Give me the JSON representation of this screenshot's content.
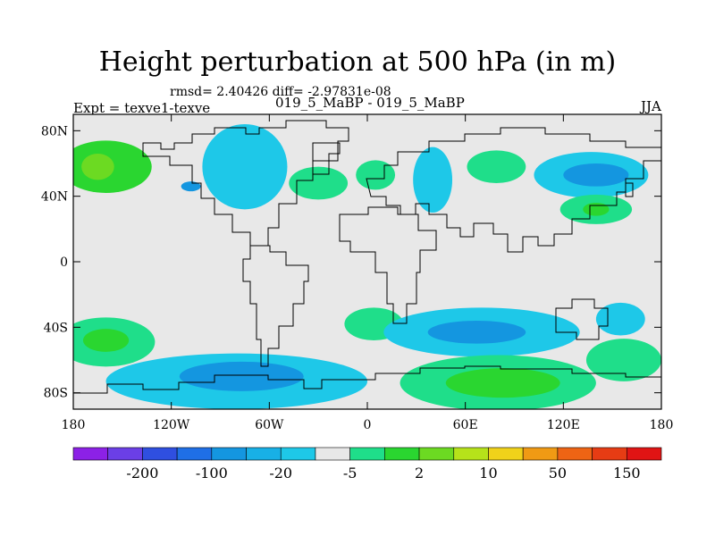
{
  "header": {
    "title": "Height perturbation at 500 hPa (in m)",
    "stats": "rmsd= 2.40426 diff= -2.97831e-08",
    "expt": "Expt = texve1-texve",
    "case_pair": "019_5_MaBP - 019_5_MaBP",
    "season": "JJA"
  },
  "chart_data": {
    "type": "heatmap",
    "title": "Height perturbation at 500 hPa (in m)",
    "xlabel": "",
    "ylabel": "",
    "xlim": [
      -180,
      180
    ],
    "ylim": [
      -90,
      90
    ],
    "x_ticks": [
      {
        "value": -180,
        "label": "180"
      },
      {
        "value": -120,
        "label": "120W"
      },
      {
        "value": -60,
        "label": "60W"
      },
      {
        "value": 0,
        "label": "0"
      },
      {
        "value": 60,
        "label": "60E"
      },
      {
        "value": 120,
        "label": "120E"
      },
      {
        "value": 180,
        "label": "180"
      }
    ],
    "y_ticks": [
      {
        "value": 80,
        "label": "80N"
      },
      {
        "value": 40,
        "label": "40N"
      },
      {
        "value": 0,
        "label": "0"
      },
      {
        "value": -40,
        "label": "40S"
      },
      {
        "value": -80,
        "label": "80S"
      }
    ],
    "colorbar": {
      "colors": [
        "#8c21e6",
        "#6b3fe6",
        "#2f4fe0",
        "#1f6fe6",
        "#1496e0",
        "#18b0e6",
        "#1ec8e8",
        "#e8e8e8",
        "#1fde8a",
        "#2ad630",
        "#6cda22",
        "#b6e21a",
        "#f0d21a",
        "#f09a14",
        "#ee6414",
        "#e63c14",
        "#e01414"
      ],
      "labels": [
        "-200",
        "-100",
        "-20",
        "-5",
        "2",
        "10",
        "50",
        "150"
      ]
    },
    "anomaly_regions": [
      {
        "id": "north-pacific-green",
        "level": 10,
        "center": [
          -160,
          58
        ],
        "extent": [
          28,
          16
        ]
      },
      {
        "id": "north-pacific-green-core",
        "level": 20,
        "center": [
          -165,
          58
        ],
        "extent": [
          10,
          8
        ]
      },
      {
        "id": "north-america-blue",
        "level": -5,
        "center": [
          -75,
          58
        ],
        "extent": [
          26,
          26
        ]
      },
      {
        "id": "north-america-blue-core",
        "level": -10,
        "center": [
          -108,
          46
        ],
        "extent": [
          6,
          3
        ]
      },
      {
        "id": "north-atlantic-green",
        "level": 5,
        "center": [
          -30,
          48
        ],
        "extent": [
          18,
          10
        ]
      },
      {
        "id": "europe-green",
        "level": 5,
        "center": [
          5,
          53
        ],
        "extent": [
          12,
          9
        ]
      },
      {
        "id": "siberia-blue",
        "level": -5,
        "center": [
          40,
          50
        ],
        "extent": [
          12,
          20
        ]
      },
      {
        "id": "central-asia-green",
        "level": 5,
        "center": [
          79,
          58
        ],
        "extent": [
          18,
          10
        ]
      },
      {
        "id": "north-pacific-east-blue",
        "level": -5,
        "center": [
          137,
          53
        ],
        "extent": [
          35,
          14
        ]
      },
      {
        "id": "north-pacific-east-blue-core",
        "level": -10,
        "center": [
          140,
          53
        ],
        "extent": [
          20,
          7
        ]
      },
      {
        "id": "japan-green",
        "level": 5,
        "center": [
          140,
          32
        ],
        "extent": [
          22,
          9
        ]
      },
      {
        "id": "japan-green-core",
        "level": 10,
        "center": [
          140,
          32
        ],
        "extent": [
          8,
          4
        ]
      },
      {
        "id": "south-america-east-green",
        "level": 5,
        "center": [
          4,
          -38
        ],
        "extent": [
          18,
          10
        ]
      },
      {
        "id": "southern-indian-blue",
        "level": -5,
        "center": [
          70,
          -43
        ],
        "extent": [
          60,
          15
        ]
      },
      {
        "id": "southern-indian-blue-core",
        "level": -10,
        "center": [
          67,
          -43
        ],
        "extent": [
          30,
          7
        ]
      },
      {
        "id": "australia-blue",
        "level": -5,
        "center": [
          155,
          -35
        ],
        "extent": [
          15,
          10
        ]
      },
      {
        "id": "south-pacific-west-green",
        "level": 5,
        "center": [
          -160,
          -49
        ],
        "extent": [
          30,
          15
        ]
      },
      {
        "id": "south-pacific-west-green-core",
        "level": 10,
        "center": [
          -160,
          -48
        ],
        "extent": [
          14,
          7
        ]
      },
      {
        "id": "southern-ocean-blue",
        "level": -5,
        "center": [
          -80,
          -73
        ],
        "extent": [
          80,
          17
        ]
      },
      {
        "id": "southern-ocean-blue-core",
        "level": -10,
        "center": [
          -77,
          -70
        ],
        "extent": [
          38,
          9
        ]
      },
      {
        "id": "antarctic-green",
        "level": 5,
        "center": [
          80,
          -74
        ],
        "extent": [
          60,
          17
        ]
      },
      {
        "id": "antarctic-green-core",
        "level": 10,
        "center": [
          83,
          -74
        ],
        "extent": [
          35,
          9
        ]
      },
      {
        "id": "ross-sea-green",
        "level": 5,
        "center": [
          157,
          -60
        ],
        "extent": [
          23,
          13
        ]
      }
    ]
  }
}
